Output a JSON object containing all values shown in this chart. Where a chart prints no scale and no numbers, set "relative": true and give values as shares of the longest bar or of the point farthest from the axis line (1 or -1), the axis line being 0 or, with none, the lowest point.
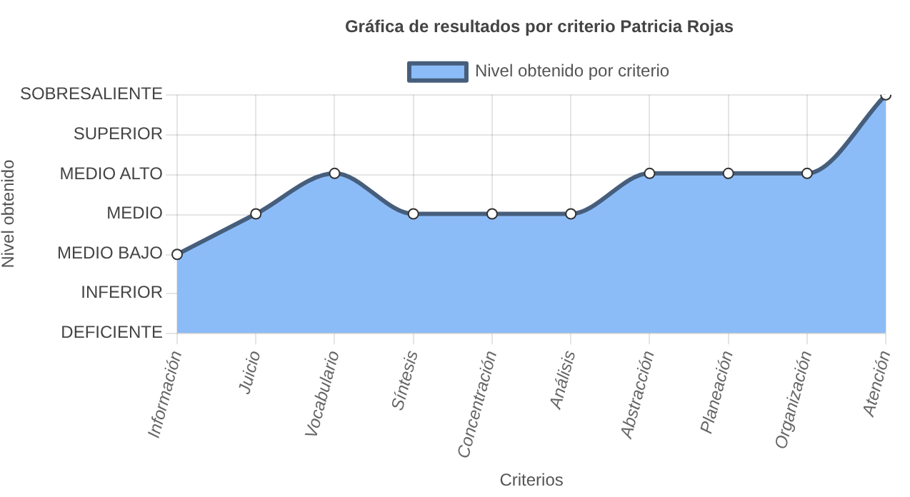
{
  "chart_data": {
    "type": "area",
    "title": "Gráfica de resultados por criterio Patricia Rojas",
    "xlabel": "Criterios",
    "categories": [
      "Información",
      "Juicio",
      "Vocabulario",
      "Síntesis",
      "Concentración",
      "Análisis",
      "Abstracción",
      "Planeación",
      "Organización",
      "Atención"
    ],
    "series": [
      {
        "name": "Nivel obtenido por criterio",
        "color": "#8cbcf8",
        "values": [
          0.33,
          0.5,
          0.67,
          0.5,
          0.5,
          0.5,
          0.67,
          0.67,
          0.67,
          1
        ]
      }
    ],
    "relative": true,
    "annotations": [
      "Nivel obtenido",
      "DEFICIENTE",
      "INFERIOR",
      "MEDIO BAJO",
      "MEDIO",
      "MEDIO ALTO",
      "SUPERIOR",
      "SOBRESALIENTE"
    ],
    "grid": true,
    "legend": "top",
    "marker": "circle",
    "line_style": "solid"
  }
}
